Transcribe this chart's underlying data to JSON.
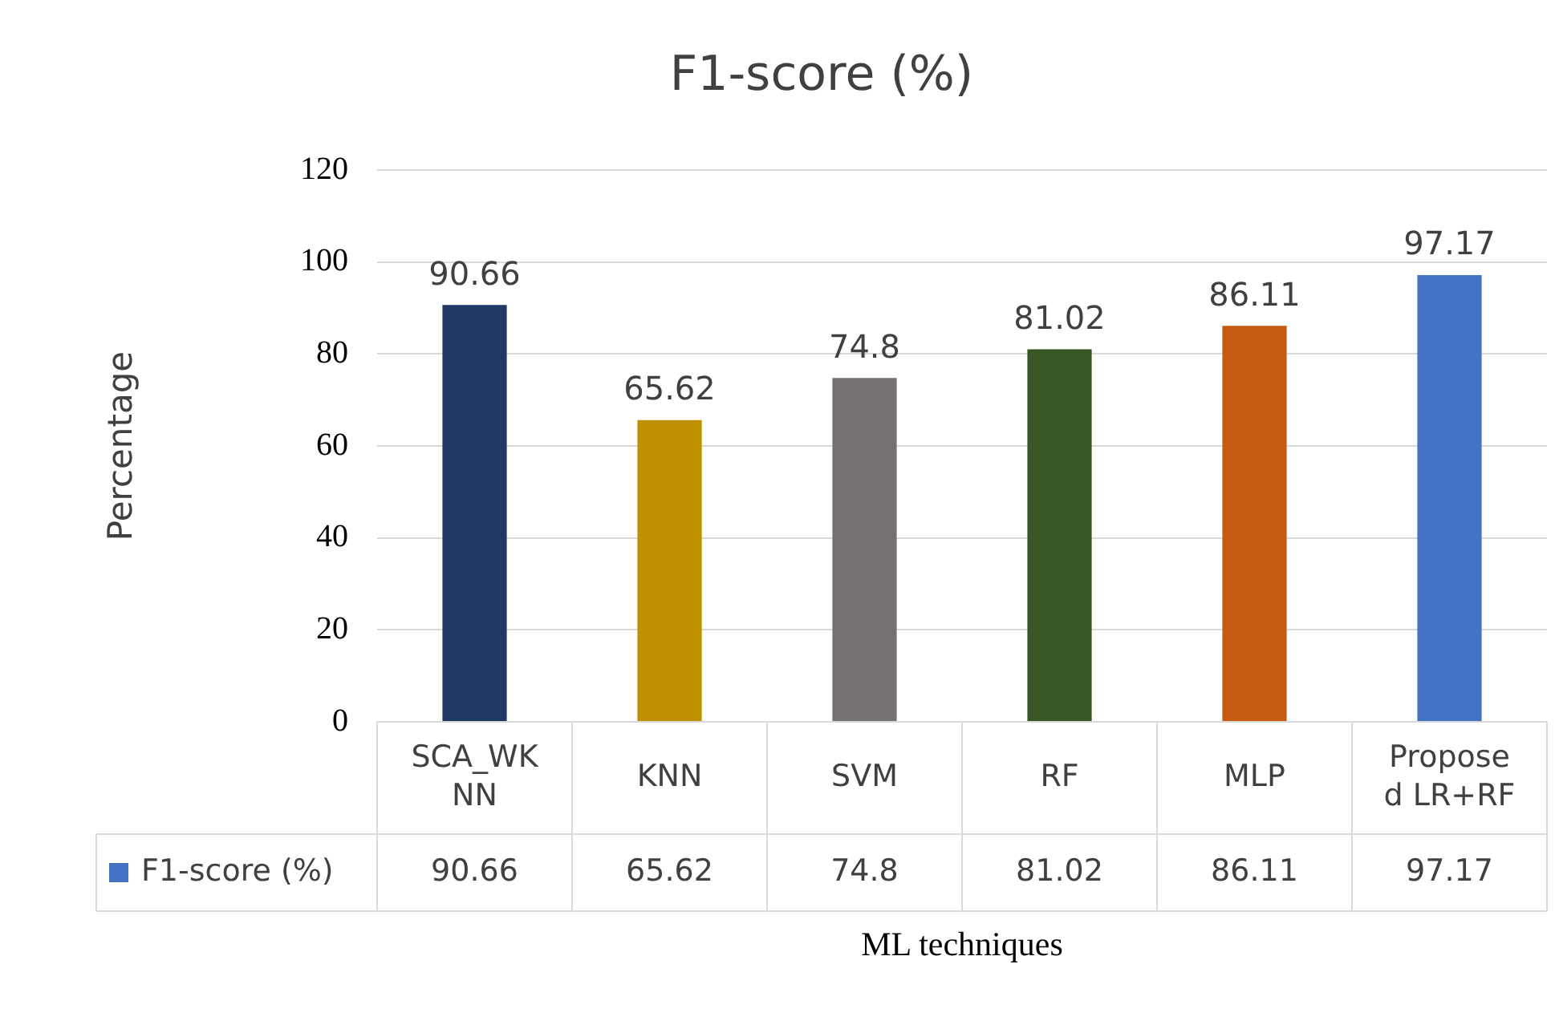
{
  "chart_data": {
    "type": "bar",
    "title": "F1-score (%)",
    "xlabel": "ML techniques",
    "ylabel": "Percentage",
    "categories": [
      "SCA_WKNN",
      "KNN",
      "SVM",
      "RF",
      "MLP",
      "Proposed LR+RF"
    ],
    "series": [
      {
        "name": "F1-score (%)",
        "color": "#4472c4",
        "colors": [
          "#1f3864",
          "#bf9000",
          "#767171",
          "#375623",
          "#c55a11",
          "#4472c4"
        ],
        "values": [
          90.66,
          65.62,
          74.8,
          81.02,
          86.11,
          97.17
        ]
      }
    ],
    "annotations": [
      "90.66",
      "65.62",
      "74.8",
      "81.02",
      "86.11",
      "97.17"
    ],
    "ylim": [
      0,
      120
    ],
    "yticks": [
      0,
      20,
      40,
      60,
      80,
      100,
      120
    ],
    "grid": "y",
    "legend": "bottom",
    "data_labels": true
  }
}
